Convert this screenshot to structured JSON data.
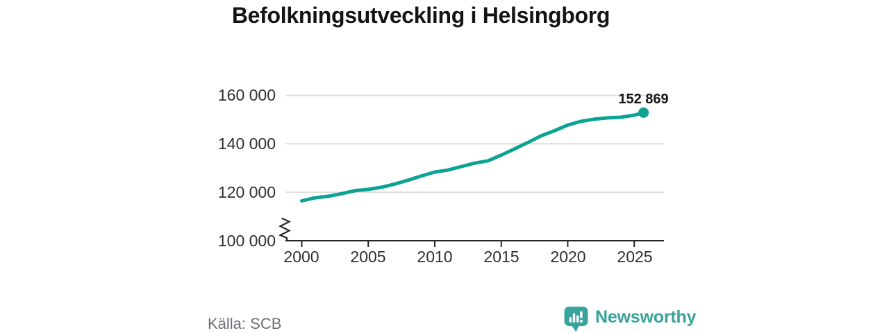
{
  "title": "Befolkningsutveckling i Helsingborg",
  "footer": {
    "source": "Källa: SCB",
    "brand_name": "Newsworthy"
  },
  "colors": {
    "line": "#0ca394",
    "marker": "#0ca394",
    "axis": "#262626",
    "grid": "#dedede",
    "tick_text": "#2e2e2e",
    "muted_text": "#6d7176",
    "brand": "#38a19a",
    "background": "#ffffff"
  },
  "chart_data": {
    "type": "line",
    "title": "Befolkningsutveckling i Helsingborg",
    "xlabel": "",
    "ylabel": "",
    "x": [
      2000,
      2001,
      2002,
      2003,
      2004,
      2005,
      2006,
      2007,
      2008,
      2009,
      2010,
      2011,
      2012,
      2013,
      2014,
      2015,
      2016,
      2017,
      2018,
      2019,
      2020,
      2021,
      2022,
      2023,
      2024,
      2025,
      2025.7
    ],
    "y": [
      116470,
      117737,
      118344,
      119406,
      120673,
      121179,
      122062,
      123389,
      124986,
      126754,
      128359,
      129177,
      130626,
      132011,
      132989,
      135344,
      137909,
      140547,
      143304,
      145415,
      147734,
      149280,
      150165,
      150709,
      150975,
      151828,
      152869
    ],
    "x_tick_values": [
      2000,
      2005,
      2010,
      2015,
      2020,
      2025
    ],
    "x_tick_labels": [
      "2000",
      "2005",
      "2010",
      "2015",
      "2020",
      "2025"
    ],
    "y_tick_values": [
      100000,
      120000,
      140000,
      160000
    ],
    "y_tick_labels": [
      "100 000",
      "120 000",
      "140 000",
      "160 000"
    ],
    "y_gridline_values": [
      120000,
      140000,
      160000
    ],
    "ylim": [
      100000,
      163000
    ],
    "y_axis_break": true,
    "grid": "horizontal",
    "legend": "none",
    "end_point": {
      "x": 2025.7,
      "y": 152869,
      "label": "152 869"
    }
  }
}
